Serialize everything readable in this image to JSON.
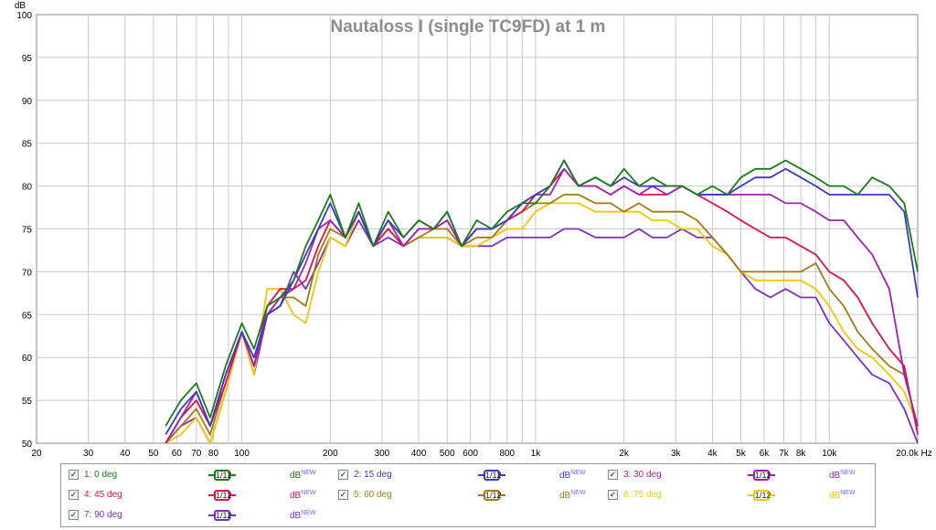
{
  "chart_data": {
    "type": "line",
    "title": "Nautaloss I (single TC9FD) at 1 m",
    "ylabel": "dB",
    "xunit": "Hz",
    "xscale": "log",
    "xlim": [
      20,
      20000
    ],
    "ylim": [
      50,
      100
    ],
    "grid": true,
    "legend_position": "bottom",
    "yticks": [
      "50",
      "55",
      "60",
      "65",
      "70",
      "75",
      "80",
      "85",
      "90",
      "95",
      "100"
    ],
    "xticks": [
      {
        "v": 20,
        "t": "20"
      },
      {
        "v": 30,
        "t": "30"
      },
      {
        "v": 40,
        "t": "40"
      },
      {
        "v": 50,
        "t": "50"
      },
      {
        "v": 60,
        "t": "60"
      },
      {
        "v": 70,
        "t": "70"
      },
      {
        "v": 80,
        "t": "80"
      },
      {
        "v": 100,
        "t": "100"
      },
      {
        "v": 200,
        "t": "200"
      },
      {
        "v": 300,
        "t": "300"
      },
      {
        "v": 400,
        "t": "400"
      },
      {
        "v": 500,
        "t": "500"
      },
      {
        "v": 600,
        "t": "600"
      },
      {
        "v": 800,
        "t": "800"
      },
      {
        "v": 1000,
        "t": "1k"
      },
      {
        "v": 2000,
        "t": "2k"
      },
      {
        "v": 3000,
        "t": "3k"
      },
      {
        "v": 4000,
        "t": "4k"
      },
      {
        "v": 5000,
        "t": "5k"
      },
      {
        "v": 6000,
        "t": "6k"
      },
      {
        "v": 7000,
        "t": "7k"
      },
      {
        "v": 8000,
        "t": "8k"
      },
      {
        "v": 10000,
        "t": "10k"
      },
      {
        "v": 20000,
        "t": "20.0k Hz"
      }
    ],
    "x": [
      55,
      62,
      70,
      78,
      88,
      100,
      110,
      122,
      135,
      150,
      165,
      182,
      200,
      225,
      250,
      280,
      315,
      355,
      400,
      450,
      500,
      560,
      630,
      710,
      800,
      900,
      1000,
      1120,
      1250,
      1400,
      1600,
      1800,
      2000,
      2250,
      2500,
      2800,
      3150,
      3550,
      4000,
      4500,
      5000,
      5600,
      6300,
      7100,
      8000,
      9000,
      10000,
      11200,
      12500,
      14000,
      16000,
      18000,
      20000
    ],
    "series": [
      {
        "name": "1: 0 deg",
        "color": "#1a7a1a",
        "values": [
          52,
          55,
          57,
          53,
          59,
          64,
          61,
          66,
          67,
          69,
          73,
          76,
          79,
          74,
          78,
          73,
          77,
          74,
          76,
          75,
          77,
          73,
          76,
          75,
          77,
          78,
          78,
          80,
          83,
          80,
          81,
          80,
          82,
          80,
          81,
          80,
          80,
          79,
          80,
          79,
          81,
          82,
          82,
          83,
          82,
          81,
          80,
          80,
          79,
          81,
          80,
          78,
          70
        ]
      },
      {
        "name": "2: 15 deg",
        "color": "#3a3ac8",
        "values": [
          51,
          54,
          56,
          52,
          58,
          63,
          60,
          65,
          66,
          69,
          72,
          75,
          78,
          74,
          77,
          73,
          76,
          74,
          76,
          75,
          77,
          73,
          75,
          75,
          76,
          78,
          79,
          80,
          83,
          80,
          81,
          80,
          81,
          80,
          80,
          80,
          80,
          79,
          79,
          79,
          80,
          81,
          81,
          82,
          81,
          80,
          79,
          79,
          79,
          79,
          79,
          77,
          67
        ]
      },
      {
        "name": "3: 30 deg",
        "color": "#a020b0",
        "values": [
          50,
          53,
          56,
          52,
          58,
          63,
          59,
          65,
          67,
          68,
          71,
          75,
          76,
          74,
          77,
          73,
          76,
          73,
          75,
          75,
          76,
          73,
          75,
          75,
          76,
          78,
          79,
          79,
          82,
          80,
          80,
          79,
          80,
          79,
          80,
          79,
          80,
          79,
          79,
          79,
          79,
          79,
          79,
          78,
          78,
          77,
          76,
          76,
          74,
          72,
          68,
          58,
          52
        ]
      },
      {
        "name": "4: 45 deg",
        "color": "#e0104a",
        "values": [
          50,
          53,
          55,
          52,
          57,
          63,
          59,
          66,
          68,
          68,
          69,
          73,
          76,
          74,
          77,
          73,
          75,
          73,
          75,
          75,
          76,
          73,
          75,
          75,
          76,
          77,
          79,
          80,
          82,
          80,
          80,
          79,
          80,
          79,
          79,
          79,
          80,
          79,
          78,
          77,
          76,
          75,
          74,
          74,
          73,
          72,
          70,
          69,
          67,
          64,
          61,
          59,
          51
        ]
      },
      {
        "name": "5: 60 deg",
        "color": "#a07a10",
        "values": [
          50,
          52,
          54,
          51,
          57,
          63,
          59,
          65,
          67,
          67,
          66,
          72,
          75,
          74,
          77,
          73,
          75,
          73,
          74,
          75,
          75,
          73,
          74,
          74,
          76,
          77,
          78,
          78,
          79,
          79,
          78,
          78,
          77,
          78,
          77,
          77,
          77,
          76,
          74,
          72,
          70,
          70,
          70,
          70,
          70,
          71,
          68,
          66,
          63,
          61,
          59,
          58,
          52
        ]
      },
      {
        "name": "6: 75 deg",
        "color": "#f0c800",
        "values": [
          50,
          51,
          53,
          50,
          56,
          63,
          58,
          68,
          68,
          65,
          64,
          70,
          74,
          73,
          77,
          73,
          75,
          73,
          74,
          74,
          74,
          73,
          73,
          74,
          75,
          75,
          77,
          78,
          78,
          78,
          77,
          77,
          77,
          77,
          76,
          76,
          75,
          75,
          73,
          72,
          70,
          69,
          69,
          69,
          69,
          68,
          66,
          63,
          61,
          60,
          58,
          56,
          52
        ]
      },
      {
        "name": "7: 90 deg",
        "color": "#7a30c0",
        "values": [
          50,
          52,
          53,
          50,
          56,
          63,
          58,
          65,
          66,
          70,
          68,
          71,
          74,
          73,
          76,
          73,
          74,
          73,
          74,
          74,
          74,
          73,
          73,
          73,
          74,
          74,
          74,
          74,
          75,
          75,
          74,
          74,
          74,
          75,
          74,
          74,
          75,
          74,
          74,
          72,
          70,
          68,
          67,
          68,
          67,
          67,
          64,
          62,
          60,
          58,
          57,
          54,
          50
        ]
      }
    ]
  },
  "legend": {
    "items": [
      {
        "label": "1: 0 deg",
        "color": "#1a7a1a",
        "db": "dB",
        "new": "NEW",
        "smooth": "1/12"
      },
      {
        "label": "2: 15 deg",
        "color": "#3a3ac8",
        "db": "dB",
        "new": "NEW",
        "smooth": "1/12"
      },
      {
        "label": "3: 30 deg",
        "color": "#a020b0",
        "db": "dB",
        "new": "NEW",
        "smooth": "1/12"
      },
      {
        "label": "4: 45 deg",
        "color": "#e0104a",
        "db": "dB",
        "new": "NEW",
        "smooth": "1/12"
      },
      {
        "label": "5: 60 deg",
        "color": "#a07a10",
        "db": "dB",
        "new": "NEW",
        "smooth": "1/12"
      },
      {
        "label": "6: 75 deg",
        "color": "#f0c800",
        "db": "dB",
        "new": "NEW",
        "smooth": "1/12"
      },
      {
        "label": "7: 90 deg",
        "color": "#7a30c0",
        "db": "dB",
        "new": "NEW",
        "smooth": "1/12"
      }
    ],
    "check": "✓"
  }
}
